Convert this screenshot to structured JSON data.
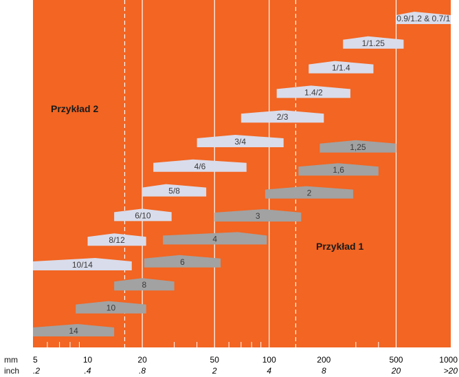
{
  "theme": {
    "background": "#F26522",
    "light_shape": "#D9DCEB",
    "dark_shape": "#A2A2A2",
    "light_text": "#3a3a3a",
    "dark_text": "#3a3a3a",
    "grid_line": "#FFFFFF"
  },
  "axis": {
    "mm_unit": "mm",
    "inch_unit": "inch",
    "scale": "log",
    "range_mm": [
      5,
      1000
    ],
    "mm_ticks": [
      {
        "value": 5,
        "label": "5"
      },
      {
        "value": 10,
        "label": "10"
      },
      {
        "value": 20,
        "label": "20"
      },
      {
        "value": 50,
        "label": "50"
      },
      {
        "value": 100,
        "label": "100"
      },
      {
        "value": 200,
        "label": "200"
      },
      {
        "value": 500,
        "label": "500"
      },
      {
        "value": 1000,
        "label": "1000"
      }
    ],
    "inch_ticks": [
      {
        "value": 5,
        "label": ".2"
      },
      {
        "value": 10,
        "label": ".4"
      },
      {
        "value": 20,
        "label": ".8"
      },
      {
        "value": 50,
        "label": "2"
      },
      {
        "value": 100,
        "label": "4"
      },
      {
        "value": 200,
        "label": "8"
      },
      {
        "value": 500,
        "label": "20"
      },
      {
        "value": 1000,
        "label": ">20"
      }
    ],
    "minor_ticks": [
      6,
      7,
      8,
      9,
      30,
      40,
      60,
      70,
      80,
      90,
      300,
      400
    ],
    "solid_lines": [
      20,
      50,
      100,
      500
    ],
    "dashed_lines": [
      16,
      140
    ]
  },
  "examples": {
    "example1": "Przykład 1",
    "example2": "Przykład 2"
  },
  "light_ranges": [
    {
      "label": "10/14",
      "min": 5,
      "max": 17.5,
      "peak": 11
    },
    {
      "label": "8/12",
      "min": 10,
      "max": 21,
      "peak": 14
    },
    {
      "label": "6/10",
      "min": 14,
      "max": 29,
      "peak": 20
    },
    {
      "label": "5/8",
      "min": 20,
      "max": 45,
      "peak": 27
    },
    {
      "label": "4/6",
      "min": 23,
      "max": 75,
      "peak": 38
    },
    {
      "label": "3/4",
      "min": 40,
      "max": 120,
      "peak": 65
    },
    {
      "label": "2/3",
      "min": 70,
      "max": 200,
      "peak": 120
    },
    {
      "label": "1.4/2",
      "min": 110,
      "max": 280,
      "peak": 170
    },
    {
      "label": "1/1.4",
      "min": 165,
      "max": 375,
      "peak": 230
    },
    {
      "label": "1/1.25",
      "min": 255,
      "max": 550,
      "peak": 350
    },
    {
      "label": "0.9/1.2 & 0.7/1",
      "min": 500,
      "max": 1000,
      "peak": 630
    }
  ],
  "dark_ranges": [
    {
      "label": "14",
      "min": 5,
      "max": 14,
      "peak": 8.8
    },
    {
      "label": "10",
      "min": 8.6,
      "max": 21,
      "peak": 13
    },
    {
      "label": "8",
      "min": 14,
      "max": 30,
      "peak": 20
    },
    {
      "label": "6",
      "min": 20.5,
      "max": 54,
      "peak": 32
    },
    {
      "label": "4",
      "min": 26,
      "max": 97,
      "peak": 67
    },
    {
      "label": "3",
      "min": 50,
      "max": 150,
      "peak": 93
    },
    {
      "label": "2",
      "min": 95,
      "max": 290,
      "peak": 160
    },
    {
      "label": "1,6",
      "min": 145,
      "max": 400,
      "peak": 240
    },
    {
      "label": "1,25",
      "min": 190,
      "max": 500,
      "peak": 300
    }
  ]
}
